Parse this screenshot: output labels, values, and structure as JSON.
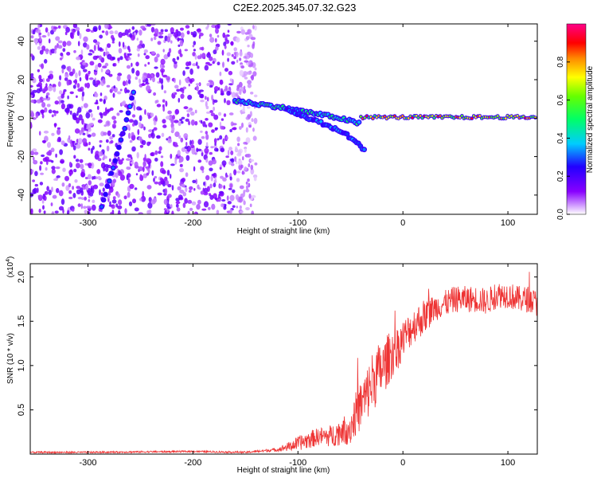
{
  "title": "C2E2.2025.345.07.32.G23",
  "chart_data": [
    {
      "type": "heatmap",
      "xlabel": "Height of straight line (km)",
      "ylabel": "Frequency (Hz)",
      "xlim": [
        -355,
        128
      ],
      "ylim": [
        -50,
        49
      ],
      "x_ticks": [
        -300,
        -200,
        -100,
        0,
        100
      ],
      "x_tick_labels": [
        "-300",
        "-200",
        "-100",
        "0",
        "100"
      ],
      "y_ticks": [
        -40,
        -20,
        0,
        20,
        40
      ],
      "y_tick_labels": [
        "-40",
        "-20",
        "0",
        "20",
        "40"
      ],
      "colorbar": {
        "label": "Normalized spectral amplitude",
        "range": [
          0,
          1
        ],
        "ticks": [
          0.0,
          0.2,
          0.4,
          0.6,
          0.8
        ],
        "tick_labels": [
          "0.0",
          "0.2",
          "0.4",
          "0.6",
          "0.8"
        ]
      },
      "features": [
        {
          "name": "carrier line",
          "x": [
            -40,
            128
          ],
          "y": [
            0.5,
            0.5
          ],
          "amplitude": 0.85
        },
        {
          "name": "upper branch",
          "x": [
            -160,
            -120,
            -90,
            -60,
            -40
          ],
          "y": [
            9,
            6,
            3,
            0,
            -3
          ],
          "amplitude": 0.5
        },
        {
          "name": "lower branch",
          "x": [
            -110,
            -80,
            -55,
            -35
          ],
          "y": [
            4,
            -2,
            -8,
            -17
          ],
          "amplitude": 0.35
        },
        {
          "name": "diagonal streak",
          "x": [
            -287,
            -265,
            -255
          ],
          "y": [
            -46,
            -5,
            18
          ],
          "amplitude": 0.3
        }
      ],
      "noise_region_x": [
        -355,
        -140
      ]
    },
    {
      "type": "line",
      "xlabel": "Height of straight line (km)",
      "ylabel": "SNR (10 * v/v)",
      "y_scale_label": "(x10",
      "y_scale_exp": "4",
      "y_scale_close": ")",
      "xlim": [
        -355,
        128
      ],
      "ylim": [
        0,
        2.15
      ],
      "x_ticks": [
        -300,
        -200,
        -100,
        0,
        100
      ],
      "x_tick_labels": [
        "-300",
        "-200",
        "-100",
        "0",
        "100"
      ],
      "y_ticks": [
        0.5,
        1.0,
        1.5,
        2.0
      ],
      "y_tick_labels": [
        "0.5",
        "1.0",
        "1.5",
        "2.0"
      ],
      "series": [
        {
          "name": "SNR",
          "color": "#ee3333",
          "x": [
            -355,
            -300,
            -250,
            -200,
            -150,
            -120,
            -110,
            -100,
            -90,
            -80,
            -70,
            -60,
            -50,
            -45,
            -40,
            -35,
            -30,
            -25,
            -20,
            -15,
            -10,
            -5,
            0,
            10,
            20,
            30,
            40,
            50,
            60,
            70,
            80,
            90,
            100,
            110,
            120,
            128
          ],
          "y": [
            0.02,
            0.02,
            0.025,
            0.03,
            0.02,
            0.05,
            0.08,
            0.12,
            0.16,
            0.2,
            0.2,
            0.25,
            0.3,
            0.45,
            0.55,
            0.65,
            0.8,
            0.9,
            0.95,
            1.05,
            1.15,
            1.2,
            1.3,
            1.45,
            1.55,
            1.65,
            1.7,
            1.75,
            1.75,
            1.75,
            1.72,
            1.8,
            1.8,
            1.75,
            1.75,
            1.7
          ],
          "noise_amplitude": [
            0.01,
            0.01,
            0.01,
            0.01,
            0.01,
            0.02,
            0.05,
            0.08,
            0.1,
            0.1,
            0.12,
            0.15,
            0.2,
            0.25,
            0.3,
            0.3,
            0.35,
            0.35,
            0.3,
            0.3,
            0.28,
            0.25,
            0.22,
            0.2,
            0.2,
            0.15,
            0.15,
            0.15,
            0.15,
            0.15,
            0.15,
            0.15,
            0.15,
            0.15,
            0.15,
            0.15
          ]
        }
      ]
    }
  ]
}
